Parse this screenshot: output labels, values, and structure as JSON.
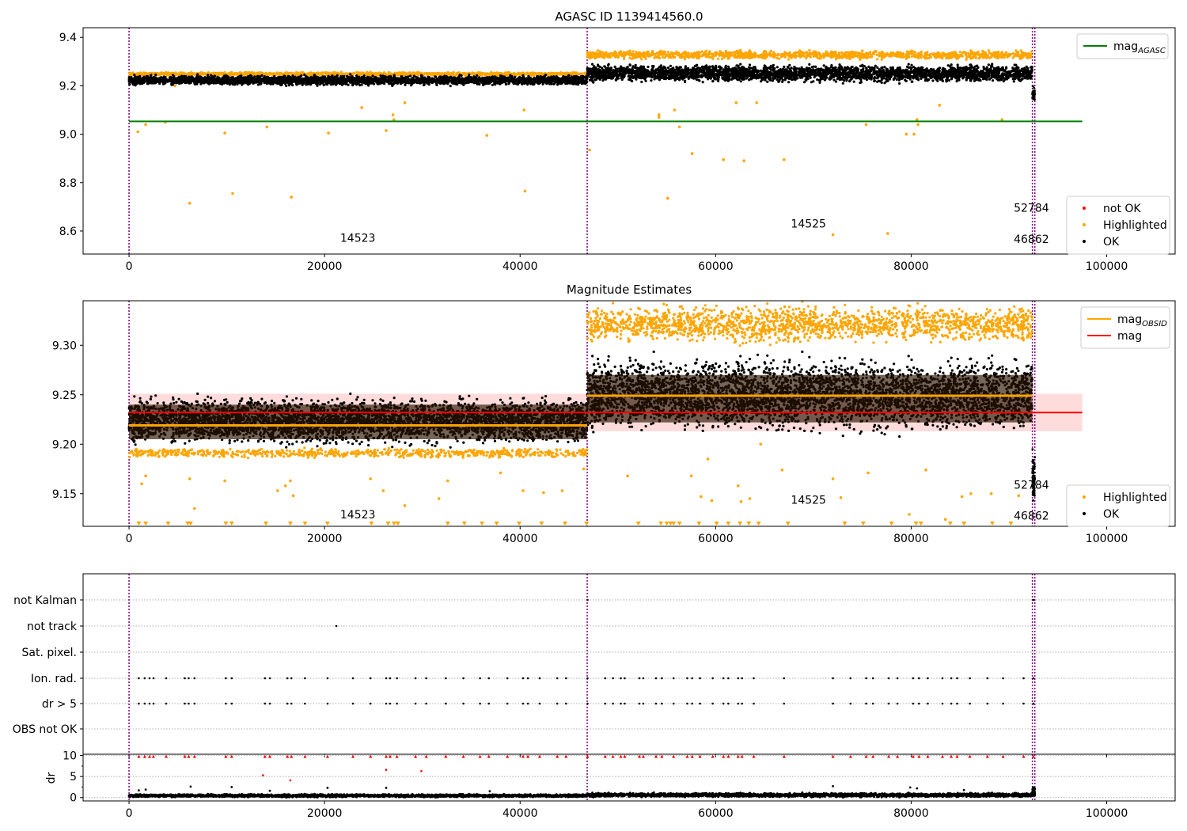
{
  "colors": {
    "ok": "#000000",
    "highlighted": "#ffa500",
    "not_ok": "#ff0000",
    "mag_agasc": "#008000",
    "mag_obsid": "#ffa500",
    "mag": "#ff0000",
    "mag_band": "#ffc0c0",
    "obsid_boundary": "#800080",
    "grid": "#b0b0b0"
  },
  "chart_data": [
    {
      "type": "scatter",
      "title": "AGASC ID 1139414560.0",
      "xlabel": "",
      "ylabel": "",
      "xlim": [
        -4700,
        107000
      ],
      "ylim": [
        8.505,
        9.44
      ],
      "x_ticks": [
        0,
        20000,
        40000,
        60000,
        80000,
        100000
      ],
      "y_ticks": [
        8.6,
        8.8,
        9.0,
        9.2,
        9.4
      ],
      "y_tick_labels": [
        "8.6",
        "8.8",
        "9.0",
        "9.2",
        "9.4"
      ],
      "legends": [
        {
          "position": "upper-right",
          "entries": [
            {
              "key": "mag_agasc",
              "label": "mag",
              "sub": "AGASC",
              "style": "line",
              "color": "#008000"
            }
          ]
        },
        {
          "position": "lower-right",
          "entries": [
            {
              "key": "not_ok",
              "label": "not OK",
              "style": "dot",
              "color": "#ff0000"
            },
            {
              "key": "highlighted",
              "label": "Highlighted",
              "style": "dot",
              "color": "#ffa500"
            },
            {
              "key": "ok",
              "label": "OK",
              "style": "dot",
              "color": "#000000"
            }
          ]
        }
      ],
      "hlines": [
        {
          "name": "mag AGASC",
          "y": 9.053,
          "x0": 0,
          "x1": 97500,
          "color": "#008000"
        }
      ],
      "obsid_boundaries": [
        0,
        46862,
        92400,
        92650
      ],
      "annotations": [
        {
          "text": "14523",
          "x": 23400,
          "y": 8.555
        },
        {
          "text": "14525",
          "x": 69500,
          "y": 8.615
        },
        {
          "text": "52784",
          "x": 92300,
          "y": 8.68
        },
        {
          "text": "46862",
          "x": 92300,
          "y": 8.55
        }
      ],
      "series": [
        {
          "name": "OK",
          "color": "#000000",
          "bands": [
            {
              "x0": 0,
              "x1": 46862,
              "y0": 9.198,
              "y1": 9.248
            },
            {
              "x0": 46862,
              "x1": 92400,
              "y0": 9.207,
              "y1": 9.295
            }
          ]
        },
        {
          "name": "Highlighted",
          "color": "#ffa500",
          "bands": [
            {
              "x0": 0,
              "x1": 46862,
              "y0": 9.24,
              "y1": 9.258
            },
            {
              "x0": 46862,
              "x1": 92400,
              "y0": 9.305,
              "y1": 9.35
            }
          ],
          "outliers": [
            [
              900,
              9.01
            ],
            [
              1700,
              9.04
            ],
            [
              3700,
              9.05
            ],
            [
              6200,
              8.715
            ],
            [
              9800,
              9.005
            ],
            [
              10600,
              8.755
            ],
            [
              14100,
              9.03
            ],
            [
              16600,
              8.74
            ],
            [
              20400,
              9.005
            ],
            [
              23800,
              9.11
            ],
            [
              26300,
              9.015
            ],
            [
              27000,
              9.08
            ],
            [
              27100,
              9.06
            ],
            [
              36600,
              8.995
            ],
            [
              40500,
              8.765
            ],
            [
              40400,
              9.1
            ],
            [
              47100,
              8.935
            ],
            [
              54200,
              9.08
            ],
            [
              54200,
              9.07
            ],
            [
              55100,
              8.735
            ],
            [
              55800,
              9.1
            ],
            [
              56300,
              9.03
            ],
            [
              57600,
              8.92
            ],
            [
              60800,
              8.895
            ],
            [
              62900,
              8.89
            ],
            [
              62100,
              9.13
            ],
            [
              64200,
              9.13
            ],
            [
              67000,
              8.895
            ],
            [
              72000,
              8.585
            ],
            [
              75400,
              9.04
            ],
            [
              77600,
              8.59
            ],
            [
              79500,
              9.0
            ],
            [
              80300,
              9.0
            ],
            [
              80600,
              9.06
            ],
            [
              80700,
              9.04
            ],
            [
              82900,
              9.12
            ],
            [
              89300,
              9.06
            ],
            [
              28200,
              9.13
            ],
            [
              4700,
              9.2
            ]
          ]
        },
        {
          "name": "OK dip",
          "color": "#000000",
          "bands": [
            {
              "x0": 92400,
              "x1": 92650,
              "y0": 9.13,
              "y1": 9.2
            }
          ]
        }
      ]
    },
    {
      "type": "scatter",
      "title": "Magnitude Estimates",
      "xlabel": "",
      "ylabel": "",
      "xlim": [
        -4700,
        107000
      ],
      "ylim": [
        9.117,
        9.345
      ],
      "x_ticks": [
        0,
        20000,
        40000,
        60000,
        80000,
        100000
      ],
      "y_ticks": [
        9.15,
        9.2,
        9.25,
        9.3
      ],
      "y_tick_labels": [
        "9.15",
        "9.20",
        "9.25",
        "9.30"
      ],
      "legends": [
        {
          "position": "upper-right",
          "entries": [
            {
              "key": "mag_obsid",
              "label": "mag",
              "sub": "OBSID",
              "style": "line",
              "color": "#ffa500"
            },
            {
              "key": "mag",
              "label": "mag",
              "style": "line",
              "color": "#ff0000"
            }
          ]
        },
        {
          "position": "lower-right",
          "entries": [
            {
              "key": "highlighted",
              "label": "Highlighted",
              "style": "dot",
              "color": "#ffa500"
            },
            {
              "key": "ok",
              "label": "OK",
              "style": "dot",
              "color": "#000000"
            }
          ]
        }
      ],
      "mag": 9.232,
      "mag_band": [
        9.213,
        9.251
      ],
      "mag_band_x": [
        0,
        97500
      ],
      "mag_obsid": [
        {
          "x0": 0,
          "x1": 46862,
          "y": 9.219
        },
        {
          "x0": 46862,
          "x1": 92400,
          "y": 9.249
        }
      ],
      "obsid_boundaries": [
        0,
        46862,
        92400,
        92650
      ],
      "annotations": [
        {
          "text": "14523",
          "x": 23400,
          "y": 9.125
        },
        {
          "text": "14525",
          "x": 69500,
          "y": 9.14
        },
        {
          "text": "52784",
          "x": 92300,
          "y": 9.155
        },
        {
          "text": "46862",
          "x": 92300,
          "y": 9.124
        }
      ],
      "series": [
        {
          "name": "OK",
          "color": "#000000",
          "bands": [
            {
              "x0": 0,
              "x1": 46862,
              "y0": 9.195,
              "y1": 9.252
            },
            {
              "x0": 46862,
              "x1": 92400,
              "y0": 9.205,
              "y1": 9.295
            }
          ]
        },
        {
          "name": "Highlighted",
          "color": "#ffa500",
          "bands": [
            {
              "x0": 46862,
              "x1": 92400,
              "y0": 9.298,
              "y1": 9.345
            },
            {
              "x0": 0,
              "x1": 46862,
              "y0": 9.185,
              "y1": 9.197
            }
          ],
          "outliers": [
            [
              1300,
              9.16
            ],
            [
              1700,
              9.168
            ],
            [
              6200,
              9.165
            ],
            [
              6700,
              9.135
            ],
            [
              9800,
              9.163
            ],
            [
              15200,
              9.153
            ],
            [
              16000,
              9.158
            ],
            [
              16500,
              9.163
            ],
            [
              16800,
              9.148
            ],
            [
              24700,
              9.165
            ],
            [
              26000,
              9.153
            ],
            [
              28200,
              9.138
            ],
            [
              31700,
              9.145
            ],
            [
              32600,
              9.163
            ],
            [
              38000,
              9.171
            ],
            [
              40300,
              9.153
            ],
            [
              42400,
              9.151
            ],
            [
              44300,
              9.153
            ],
            [
              46500,
              9.175
            ],
            [
              51000,
              9.168
            ],
            [
              57500,
              9.168
            ],
            [
              58500,
              9.147
            ],
            [
              59600,
              9.143
            ],
            [
              62300,
              9.158
            ],
            [
              62600,
              9.142
            ],
            [
              63500,
              9.145
            ],
            [
              66800,
              9.174
            ],
            [
              72000,
              9.165
            ],
            [
              72800,
              9.146
            ],
            [
              75600,
              9.171
            ],
            [
              79800,
              9.129
            ],
            [
              81500,
              9.174
            ],
            [
              83500,
              9.124
            ],
            [
              85200,
              9.147
            ],
            [
              86100,
              9.15
            ],
            [
              88200,
              9.15
            ],
            [
              91000,
              9.148
            ],
            [
              64600,
              9.2
            ],
            [
              59200,
              9.185
            ]
          ],
          "lower_limit_markers": [
            1000,
            1700,
            4000,
            6000,
            6300,
            9900,
            10500,
            14000,
            16500,
            18000,
            20300,
            24800,
            26500,
            27100,
            27500,
            32600,
            34300,
            36100,
            37600,
            39900,
            42200,
            44600,
            46800,
            52100,
            54400,
            55000,
            55400,
            55700,
            56300,
            58300,
            60100,
            61300,
            62500,
            63400,
            64400,
            67400,
            73200,
            75100,
            78000,
            80500,
            81000,
            84000,
            85400,
            88300,
            90200
          ]
        },
        {
          "name": "OK dip",
          "color": "#000000",
          "bands": [
            {
              "x0": 92400,
              "x1": 92650,
              "y0": 9.137,
              "y1": 9.198
            }
          ]
        }
      ]
    },
    {
      "type": "scatter",
      "title": "",
      "xlabel": "",
      "ylabel": "",
      "xlim": [
        -4700,
        107000
      ],
      "categories": [
        "not Kalman",
        "not track",
        "Sat. pixel.",
        "Ion. rad.",
        "dr > 5",
        "OBS not OK"
      ],
      "grid": true,
      "obsid_boundaries": [
        0,
        46862,
        92400,
        92650
      ],
      "flags": {
        "not Kalman": [
          46900,
          92500
        ],
        "not track": [
          21200
        ],
        "Sat. pixel.": [],
        "Ion. rad.": "same_as_dr_gt_5",
        "dr > 5": [
          1000,
          1600,
          2100,
          2500,
          3800,
          5700,
          6100,
          6700,
          9900,
          10500,
          13900,
          14400,
          16200,
          16600,
          18000,
          20300,
          22900,
          24700,
          26300,
          26700,
          27400,
          29300,
          30400,
          32400,
          34200,
          35900,
          36800,
          38700,
          40300,
          40800,
          42000,
          43800,
          44700,
          46900,
          48700,
          49500,
          50300,
          50700,
          52200,
          52600,
          53900,
          54500,
          55700,
          57100,
          57600,
          58400,
          59700,
          60800,
          61300,
          62300,
          62700,
          63900,
          67000,
          72000,
          73800,
          75400,
          76100,
          77700,
          78600,
          80200,
          80800,
          81700,
          83200,
          84100,
          84700,
          86000,
          87800,
          89400,
          91500,
          92500
        ],
        "OBS not OK": []
      }
    },
    {
      "type": "scatter",
      "title": "",
      "xlabel": "",
      "ylabel": "dr",
      "xlim": [
        -4700,
        107000
      ],
      "ylim": [
        -0.8,
        10.3
      ],
      "x_ticks": [
        0,
        20000,
        40000,
        60000,
        80000,
        100000
      ],
      "y_ticks": [
        0,
        5,
        10
      ],
      "y_tick_labels": [
        "0",
        "5",
        "10"
      ],
      "clip_line": 9.8,
      "series": [
        {
          "name": "OK",
          "color": "#000000",
          "bands": [
            {
              "x0": 0,
              "x1": 46862,
              "y0": 0.0,
              "y1": 0.9
            },
            {
              "x0": 46862,
              "x1": 92400,
              "y0": 0.0,
              "y1": 1.2
            },
            {
              "x0": 92400,
              "x1": 92650,
              "y0": 0.0,
              "y1": 2.8
            }
          ],
          "outliers": [
            [
              1000,
              1.7
            ],
            [
              1700,
              1.9
            ],
            [
              6300,
              2.6
            ],
            [
              10500,
              2.5
            ],
            [
              14400,
              1.6
            ],
            [
              20300,
              2.3
            ],
            [
              26300,
              2.3
            ],
            [
              36900,
              1.5
            ],
            [
              72000,
              2.7
            ],
            [
              79900,
              2.4
            ],
            [
              80600,
              2.2
            ],
            [
              85400,
              1.8
            ]
          ]
        },
        {
          "name": "not OK",
          "color": "#ff0000",
          "outliers": [
            [
              13700,
              5.3
            ],
            [
              16500,
              4.1
            ],
            [
              26300,
              6.6
            ],
            [
              29900,
              6.3
            ]
          ],
          "clipped_x": "same_as_dr_gt_5"
        }
      ]
    }
  ]
}
